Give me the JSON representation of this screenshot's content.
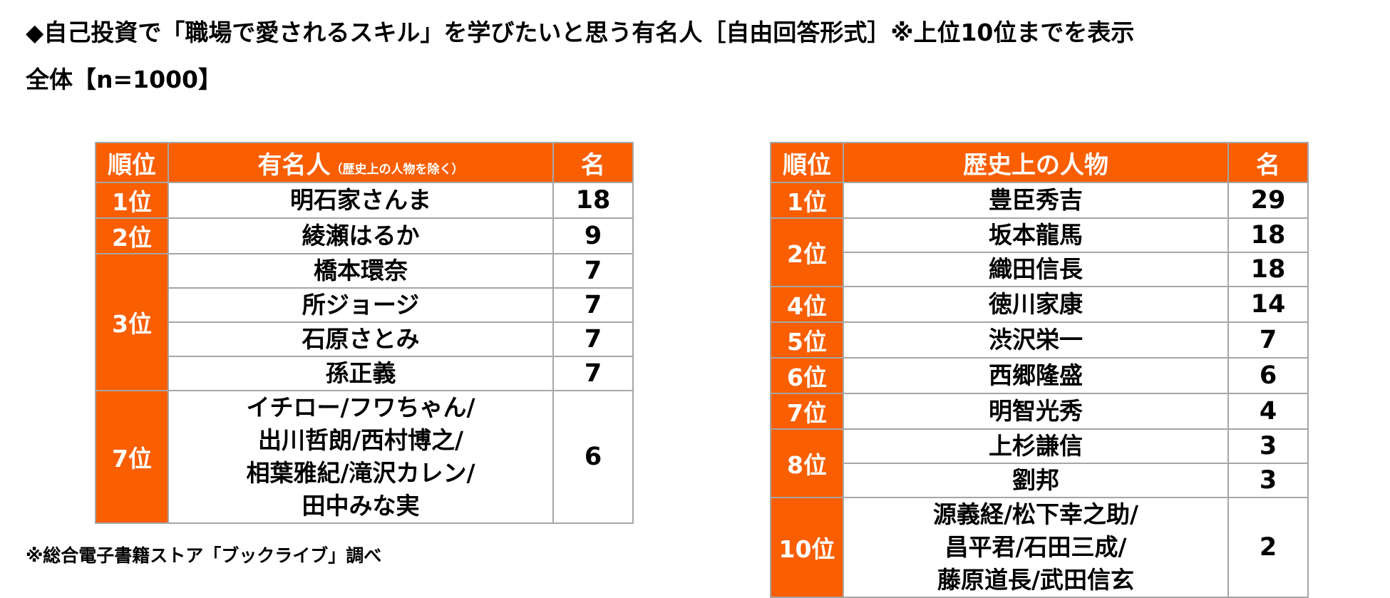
{
  "title": "◆自己投資で「職場で愛されるスキル」を学びたいと思う有名人［自由回答形式］※上位10位までを表示",
  "subtitle": "全体【n=1000】",
  "note": "※総合電子書籍ストア「ブックライブ」調べ",
  "colors": {
    "accent": "#f95e01",
    "border": "#a6a6a6"
  },
  "left_table": {
    "headers": {
      "rank": "順位",
      "person": "有名人",
      "person_note": "（歴史上の人物を除く）",
      "count": "名"
    },
    "groups": [
      {
        "rank": "1位",
        "rows": [
          {
            "name": "明石家さんま",
            "count": "18"
          }
        ]
      },
      {
        "rank": "2位",
        "rows": [
          {
            "name": "綾瀬はるか",
            "count": "9"
          }
        ]
      },
      {
        "rank": "3位",
        "rows": [
          {
            "name": "橋本環奈",
            "count": "7"
          },
          {
            "name": "所ジョージ",
            "count": "7"
          },
          {
            "name": "石原さとみ",
            "count": "7"
          },
          {
            "name": "孫正義",
            "count": "7"
          }
        ]
      },
      {
        "rank": "7位",
        "name_lines": [
          "イチロー/フワちゃん/",
          "出川哲朗/西村博之/",
          "相葉雅紀/滝沢カレン/",
          "田中みな実"
        ],
        "count": "6"
      }
    ]
  },
  "right_table": {
    "headers": {
      "rank": "順位",
      "person": "歴史上の人物",
      "count": "名"
    },
    "groups": [
      {
        "rank": "1位",
        "rows": [
          {
            "name": "豊臣秀吉",
            "count": "29"
          }
        ]
      },
      {
        "rank": "2位",
        "rows": [
          {
            "name": "坂本龍馬",
            "count": "18"
          },
          {
            "name": "織田信長",
            "count": "18"
          }
        ]
      },
      {
        "rank": "4位",
        "rows": [
          {
            "name": "徳川家康",
            "count": "14"
          }
        ]
      },
      {
        "rank": "5位",
        "rows": [
          {
            "name": "渋沢栄一",
            "count": "7"
          }
        ]
      },
      {
        "rank": "6位",
        "rows": [
          {
            "name": "西郷隆盛",
            "count": "6"
          }
        ]
      },
      {
        "rank": "7位",
        "rows": [
          {
            "name": "明智光秀",
            "count": "4"
          }
        ]
      },
      {
        "rank": "8位",
        "rows": [
          {
            "name": "上杉謙信",
            "count": "3"
          },
          {
            "name": "劉邦",
            "count": "3"
          }
        ]
      },
      {
        "rank": "10位",
        "name_lines": [
          "源義経/松下幸之助/",
          "昌平君/石田三成/",
          "藤原道長/武田信玄"
        ],
        "count": "2"
      }
    ]
  }
}
